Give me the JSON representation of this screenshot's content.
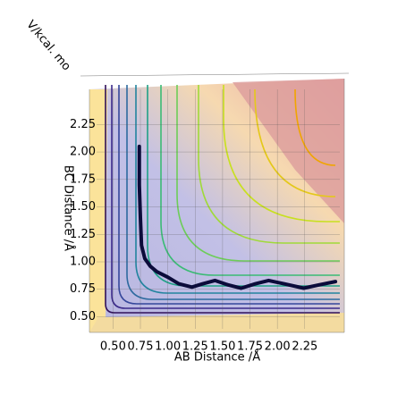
{
  "chart_data": {
    "type": "line",
    "xlabel": "AB Distance /Å",
    "ylabel": "BC Distance /Å",
    "zlabel": "V/kcal. mo",
    "xlim": [
      0.35,
      2.57
    ],
    "ylim": [
      0.39,
      2.57
    ],
    "xticks": [
      {
        "value": 0.5,
        "label": "0.50"
      },
      {
        "value": 0.75,
        "label": "0.75"
      },
      {
        "value": 1.0,
        "label": "1.00"
      },
      {
        "value": 1.25,
        "label": "1.25"
      },
      {
        "value": 1.5,
        "label": "1.50"
      },
      {
        "value": 1.75,
        "label": "1.75"
      },
      {
        "value": 2.0,
        "label": "2.00"
      },
      {
        "value": 2.25,
        "label": "2.25"
      }
    ],
    "yticks": [
      {
        "value": 0.5,
        "label": "0.50"
      },
      {
        "value": 0.75,
        "label": "0.75"
      },
      {
        "value": 1.0,
        "label": "1.00"
      },
      {
        "value": 1.25,
        "label": "1.25"
      },
      {
        "value": 1.5,
        "label": "1.50"
      },
      {
        "value": 1.75,
        "label": "1.75"
      },
      {
        "value": 2.0,
        "label": "2.00"
      },
      {
        "value": 2.25,
        "label": "2.25"
      }
    ],
    "series": [
      {
        "color": "#0b0b3a",
        "x": [
          0.74,
          0.74,
          0.75,
          0.76,
          0.79,
          0.84,
          0.9,
          1.0,
          1.1,
          1.22,
          1.32,
          1.43,
          1.55,
          1.67,
          1.8,
          1.92,
          2.06,
          2.24,
          2.38,
          2.53
        ],
        "values": [
          2.05,
          1.7,
          1.4,
          1.15,
          1.03,
          0.96,
          0.91,
          0.86,
          0.8,
          0.77,
          0.8,
          0.83,
          0.79,
          0.76,
          0.8,
          0.83,
          0.8,
          0.76,
          0.79,
          0.82
        ]
      }
    ]
  }
}
